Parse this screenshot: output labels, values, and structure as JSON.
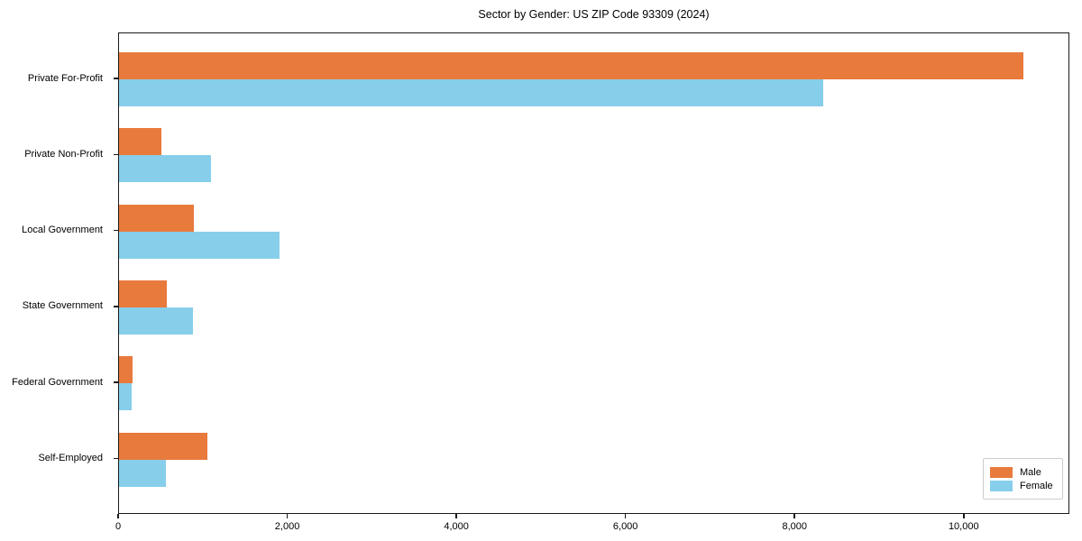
{
  "title": "Sector by Gender: US ZIP Code 93309 (2024)",
  "chart_data": {
    "type": "bar",
    "orientation": "horizontal",
    "title": "Sector by Gender: US ZIP Code 93309 (2024)",
    "categories": [
      "Private For-Profit",
      "Private Non-Profit",
      "Local Government",
      "State Government",
      "Federal Government",
      "Self-Employed"
    ],
    "series": [
      {
        "name": "Male",
        "color": "#E87A3C",
        "values": [
          10700,
          500,
          890,
          570,
          160,
          1050
        ]
      },
      {
        "name": "Female",
        "color": "#87CEEB",
        "values": [
          8330,
          1090,
          1900,
          870,
          150,
          550
        ]
      }
    ],
    "xlabel": "",
    "ylabel": "",
    "xlim": [
      0,
      11250
    ],
    "x_ticks": [
      0,
      2000,
      4000,
      6000,
      8000,
      10000
    ],
    "x_tick_labels": [
      "0",
      "2,000",
      "4,000",
      "6,000",
      "8,000",
      "10,000"
    ],
    "grid": false,
    "legend_position": "lower right"
  },
  "colors": {
    "male": "#E87A3C",
    "female": "#87CEEB",
    "spine": "#1a1a1a",
    "legend_border": "#cccccc",
    "background": "#ffffff"
  }
}
